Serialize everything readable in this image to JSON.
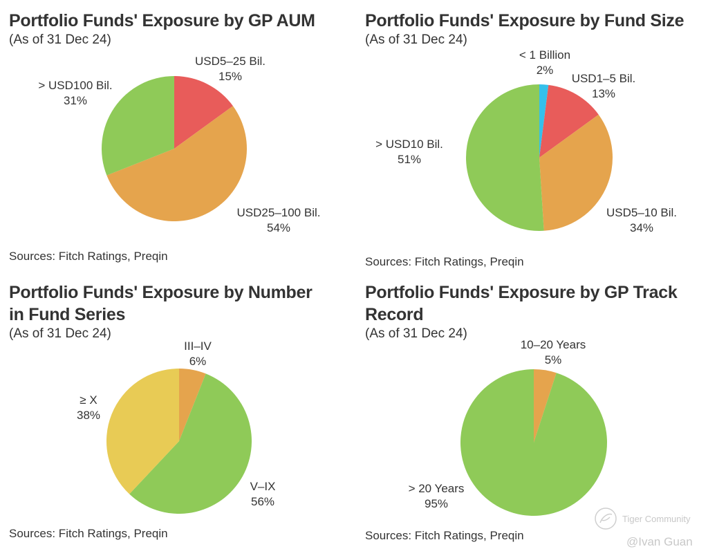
{
  "chart_data": [
    {
      "type": "pie",
      "title": "Portfolio Funds' Exposure by GP AUM",
      "subtitle": "(As of 31 Dec 24)",
      "source": "Sources: Fitch Ratings, Preqin",
      "slices": [
        {
          "label": "USD5–25 Bil.",
          "value": 15,
          "value_label": "15%",
          "color": "#e85c5a"
        },
        {
          "label": "USD25–100 Bil.",
          "value": 54,
          "value_label": "54%",
          "color": "#e5a44d"
        },
        {
          "label": "> USD100 Bil.",
          "value": 31,
          "value_label": "31%",
          "color": "#8fca58"
        }
      ],
      "start_angle": "12 o'clock",
      "direction": "clockwise"
    },
    {
      "type": "pie",
      "title": "Portfolio Funds' Exposure by Fund Size",
      "subtitle": "(As of 31 Dec 24)",
      "source": "Sources: Fitch Ratings, Preqin",
      "slices": [
        {
          "label": "< 1 Billion",
          "value": 2,
          "value_label": "2%",
          "color": "#35c0ea"
        },
        {
          "label": "USD1–5 Bil.",
          "value": 13,
          "value_label": "13%",
          "color": "#e85c5a"
        },
        {
          "label": "USD5–10 Bil.",
          "value": 34,
          "value_label": "34%",
          "color": "#e5a44d"
        },
        {
          "label": "> USD10 Bil.",
          "value": 51,
          "value_label": "51%",
          "color": "#8fca58"
        }
      ],
      "start_angle": "12 o'clock",
      "direction": "clockwise"
    },
    {
      "type": "pie",
      "title": "Portfolio Funds' Exposure by Number\nin Fund Series",
      "subtitle": "(As of 31 Dec 24)",
      "source": "Sources: Fitch Ratings, Preqin",
      "slices": [
        {
          "label": "III–IV",
          "value": 6,
          "value_label": "6%",
          "color": "#e5a44d"
        },
        {
          "label": "V–IX",
          "value": 56,
          "value_label": "56%",
          "color": "#8fca58"
        },
        {
          "label": "≥ X",
          "value": 38,
          "value_label": "38%",
          "color": "#e8cb55"
        }
      ],
      "start_angle": "12 o'clock",
      "direction": "clockwise"
    },
    {
      "type": "pie",
      "title": "Portfolio Funds' Exposure by GP Track\nRecord",
      "subtitle": "(As of 31 Dec 24)",
      "source": "Sources: Fitch Ratings, Preqin",
      "slices": [
        {
          "label": "10–20 Years",
          "value": 5,
          "value_label": "5%",
          "color": "#e5a44d"
        },
        {
          "label": "> 20 Years",
          "value": 95,
          "value_label": "95%",
          "color": "#8fca58"
        }
      ],
      "start_angle": "12 o'clock",
      "direction": "clockwise"
    }
  ],
  "watermark": {
    "brand": "Tiger Community",
    "handle": "@Ivan Guan"
  }
}
